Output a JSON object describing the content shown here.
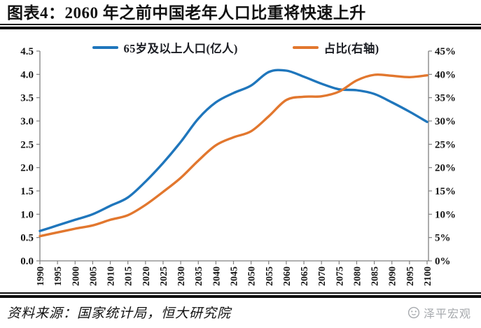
{
  "header": {
    "title": "图表4：2060 年之前中国老年人口比重将快速上升"
  },
  "legend": [
    {
      "label": "65岁及以上人口(亿人)",
      "color": "#1F76BC"
    },
    {
      "label": "占比(右轴)",
      "color": "#E2772E"
    }
  ],
  "footer": {
    "source": "资料来源：国家统计局，恒大研究院",
    "brand": "泽平宏观",
    "brand_color": "#A6A9AD",
    "brand_icon": "panda-face-icon"
  },
  "colors": {
    "series_population": "#1F76BC",
    "series_share": "#E2772E",
    "axis": "#808080",
    "rule": "#0D0D0D"
  },
  "chart_data": {
    "type": "line",
    "title": "图表4：2060 年之前中国老年人口比重将快速上升",
    "legend_position": "top",
    "grid": false,
    "x_label_rotation": -90,
    "x": [
      1990,
      1995,
      2000,
      2005,
      2010,
      2015,
      2020,
      2025,
      2030,
      2035,
      2040,
      2045,
      2050,
      2055,
      2060,
      2065,
      2070,
      2075,
      2080,
      2085,
      2090,
      2095,
      2100
    ],
    "series": [
      {
        "name": "65岁及以上人口(亿人)",
        "axis": "left",
        "color": "#1F76BC",
        "values": [
          0.64,
          0.76,
          0.88,
          1.0,
          1.18,
          1.36,
          1.7,
          2.1,
          2.55,
          3.05,
          3.4,
          3.6,
          3.76,
          4.05,
          4.08,
          3.95,
          3.8,
          3.68,
          3.66,
          3.58,
          3.4,
          3.2,
          2.98
        ]
      },
      {
        "name": "占比(右轴)",
        "axis": "right",
        "color": "#E2772E",
        "unit": "%",
        "values": [
          5.3,
          6.1,
          6.9,
          7.6,
          8.8,
          9.8,
          12.0,
          14.8,
          17.8,
          21.5,
          24.8,
          26.5,
          27.8,
          31.0,
          34.5,
          35.2,
          35.3,
          36.3,
          38.7,
          39.9,
          39.7,
          39.4,
          39.8
        ]
      }
    ],
    "left_axis": {
      "min": 0,
      "max": 4.5,
      "step": 0.5,
      "decimals": 1
    },
    "right_axis": {
      "min": 0,
      "max": 45,
      "step": 5,
      "suffix": "%"
    }
  }
}
